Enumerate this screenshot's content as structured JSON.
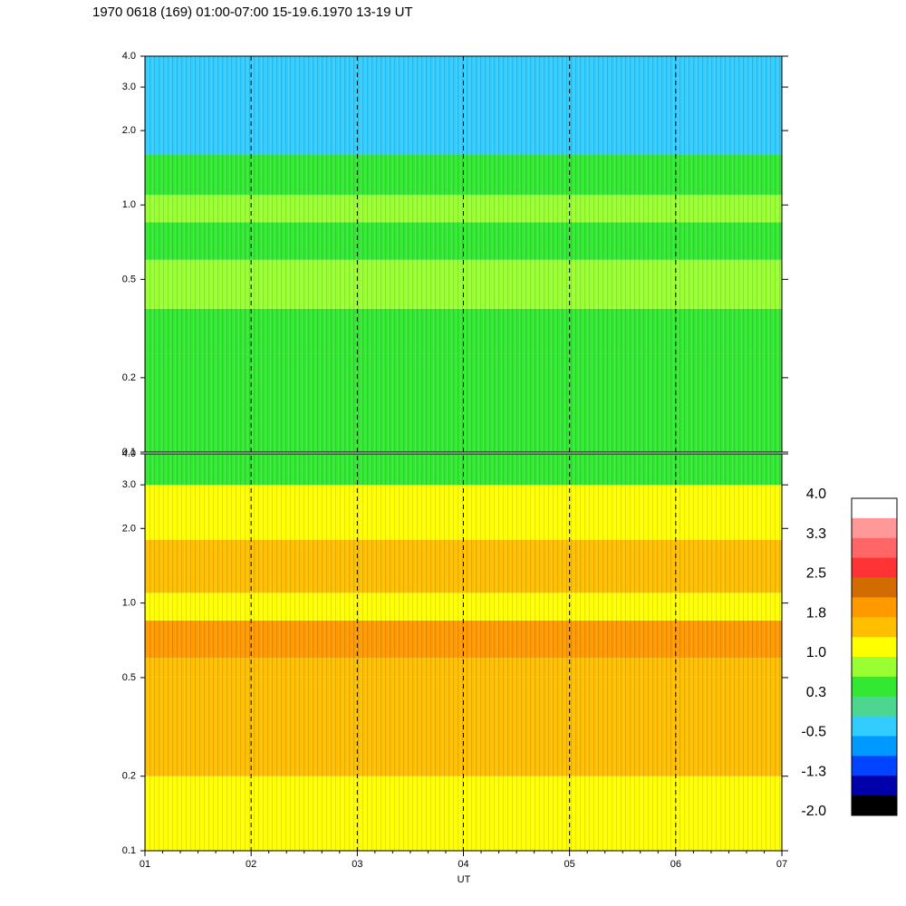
{
  "title": "1970 0618 (169) 01:00-07:00 15-19.6.1970  13-19 UT",
  "chart_data": {
    "type": "heatmap",
    "title": "1970 0618 (169) 01:00-07:00 15-19.6.1970  13-19 UT",
    "xlabel": "UT",
    "x_ticks": [
      "01",
      "02",
      "03",
      "04",
      "05",
      "06",
      "07"
    ],
    "x_range": [
      1,
      7
    ],
    "dashed_hour_lines": [
      2,
      3,
      4,
      5,
      6
    ],
    "y_scale": "log",
    "y_range": [
      0.1,
      4.0
    ],
    "panels": [
      {
        "name": "top",
        "y_ticks": [
          {
            "value": 0.1,
            "label": "0.1"
          },
          {
            "value": 0.2,
            "label": "0.2"
          },
          {
            "value": 0.5,
            "label": "0.5"
          },
          {
            "value": 1.0,
            "label": "1.0"
          },
          {
            "value": 2.0,
            "label": "2.0"
          },
          {
            "value": 3.0,
            "label": "3.0"
          },
          {
            "value": 4.0,
            "label": "4.0"
          }
        ],
        "bands": [
          {
            "y": [
              0.1,
              0.25
            ],
            "level": 0.3
          },
          {
            "y": [
              0.25,
              0.38
            ],
            "level": 0.6
          },
          {
            "y": [
              0.38,
              0.6
            ],
            "level": 1.0
          },
          {
            "y": [
              0.6,
              0.85
            ],
            "level": 0.6
          },
          {
            "y": [
              0.85,
              1.1
            ],
            "level": 0.8
          },
          {
            "y": [
              1.1,
              1.6
            ],
            "level": 0.3
          },
          {
            "y": [
              1.6,
              4.0
            ],
            "level": -0.3
          }
        ]
      },
      {
        "name": "bottom",
        "y_ticks": [
          {
            "value": 0.1,
            "label": "0.1"
          },
          {
            "value": 0.2,
            "label": "0.2"
          },
          {
            "value": 0.5,
            "label": "0.5"
          },
          {
            "value": 1.0,
            "label": "1.0"
          },
          {
            "value": 2.0,
            "label": "2.0"
          },
          {
            "value": 3.0,
            "label": "3.0"
          },
          {
            "value": 4.0,
            "label": "4.0"
          }
        ],
        "bands": [
          {
            "y": [
              0.1,
              0.2
            ],
            "level": 1.3
          },
          {
            "y": [
              0.2,
              0.5
            ],
            "level": 1.5
          },
          {
            "y": [
              0.5,
              0.6
            ],
            "level": 1.8
          },
          {
            "y": [
              0.6,
              0.85
            ],
            "level": 2.2
          },
          {
            "y": [
              0.85,
              1.1
            ],
            "level": 1.2
          },
          {
            "y": [
              1.1,
              1.8
            ],
            "level": 1.6
          },
          {
            "y": [
              1.8,
              3.0
            ],
            "level": 1.1
          },
          {
            "y": [
              3.0,
              4.0
            ],
            "level": 0.6
          }
        ]
      }
    ],
    "colorbar": {
      "labels": [
        "4.0",
        "3.3",
        "2.5",
        "1.8",
        "1.0",
        "0.3",
        "-0.5",
        "-1.3",
        "-2.0"
      ],
      "colors": [
        "#ffffff",
        "#ff9999",
        "#ff6666",
        "#ff3333",
        "#d26c00",
        "#ff9900",
        "#ffbf00",
        "#ffff00",
        "#99ff33",
        "#33e833",
        "#4dd68f",
        "#33ccff",
        "#0099ff",
        "#0044ff",
        "#0000aa",
        "#000000"
      ]
    }
  }
}
